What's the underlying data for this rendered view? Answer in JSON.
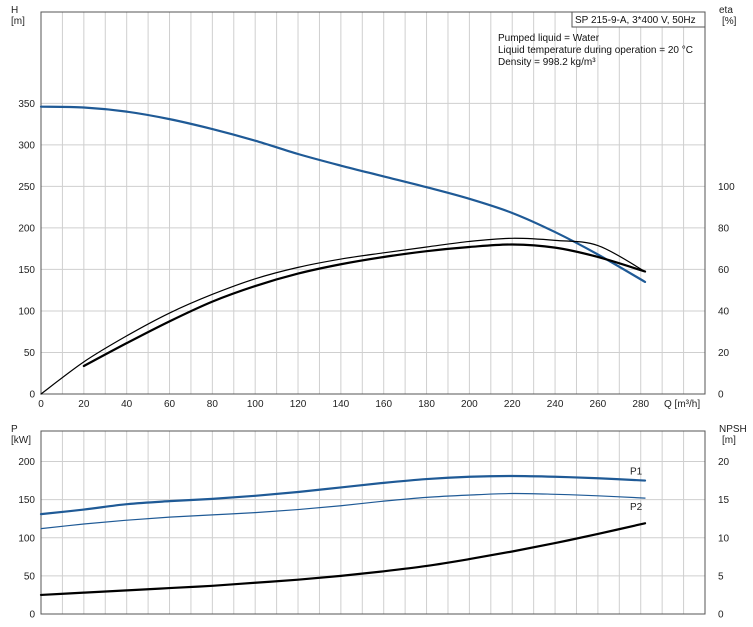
{
  "title": "SP 215-9-A, 3*400 V, 50Hz",
  "notes": [
    "Pumped liquid = Water",
    "Liquid temperature during operation = 20 °C",
    "Density = 998.2 kg/m³"
  ],
  "chart_data": [
    {
      "type": "line",
      "x_label": "Q [m³/h]",
      "x_ticks": [
        0,
        20,
        40,
        60,
        80,
        100,
        120,
        140,
        160,
        180,
        200,
        220,
        240,
        260,
        280
      ],
      "xlim": [
        0,
        310
      ],
      "y_left_label": [
        "H",
        "[m]"
      ],
      "y_left_ticks": [
        0,
        50,
        100,
        150,
        200,
        250,
        300,
        350
      ],
      "y_left_lim": [
        0,
        460
      ],
      "y_right_label": [
        "eta",
        "[%]"
      ],
      "y_right_ticks": [
        0,
        20,
        40,
        60,
        80,
        100
      ],
      "y_right_lim": [
        0,
        184
      ],
      "grid": true,
      "series": [
        {
          "axis": "left",
          "color": "#1f5a96",
          "points": [
            [
              0,
              346
            ],
            [
              20,
              345
            ],
            [
              40,
              340
            ],
            [
              60,
              331
            ],
            [
              80,
              319
            ],
            [
              100,
              305
            ],
            [
              120,
              289
            ],
            [
              140,
              275
            ],
            [
              160,
              262
            ],
            [
              180,
              249
            ],
            [
              200,
              235
            ],
            [
              220,
              218
            ],
            [
              240,
              195
            ],
            [
              260,
              168
            ],
            [
              282,
              135
            ]
          ]
        },
        {
          "axis": "right",
          "color": "#000000",
          "points": [
            [
              0,
              0
            ],
            [
              20,
              15.5
            ],
            [
              40,
              28
            ],
            [
              60,
              39
            ],
            [
              80,
              48
            ],
            [
              100,
              55.5
            ],
            [
              120,
              61
            ],
            [
              140,
              65
            ],
            [
              160,
              68
            ],
            [
              180,
              70.8
            ],
            [
              200,
              73.5
            ],
            [
              220,
              75
            ],
            [
              240,
              74
            ],
            [
              260,
              71.5
            ],
            [
              282,
              59
            ]
          ]
        },
        {
          "axis": "right",
          "color": "#000000",
          "points": [
            [
              20,
              13.5
            ],
            [
              40,
              24.5
            ],
            [
              60,
              35
            ],
            [
              80,
              44.5
            ],
            [
              100,
              52
            ],
            [
              120,
              58
            ],
            [
              140,
              62.5
            ],
            [
              160,
              66
            ],
            [
              180,
              68.8
            ],
            [
              200,
              70.8
            ],
            [
              220,
              72
            ],
            [
              240,
              70.5
            ],
            [
              260,
              66
            ],
            [
              282,
              59
            ]
          ]
        }
      ]
    },
    {
      "type": "line",
      "x_ticks": [
        0,
        20,
        40,
        60,
        80,
        100,
        120,
        140,
        160,
        180,
        200,
        220,
        240,
        260,
        280
      ],
      "xlim": [
        0,
        310
      ],
      "y_left_label": [
        "P",
        "[kW]"
      ],
      "y_left_ticks": [
        0,
        50,
        100,
        150,
        200
      ],
      "y_left_lim": [
        0,
        240
      ],
      "y_right_label": [
        "NPSH",
        "[m]"
      ],
      "y_right_ticks": [
        0,
        5,
        10,
        15,
        20
      ],
      "y_right_lim": [
        0,
        24
      ],
      "grid": true,
      "series": [
        {
          "name": "P1",
          "axis": "left",
          "color": "#1f5a96",
          "points": [
            [
              0,
              131
            ],
            [
              20,
              137
            ],
            [
              40,
              144
            ],
            [
              60,
              148
            ],
            [
              80,
              151
            ],
            [
              100,
              155
            ],
            [
              120,
              160
            ],
            [
              140,
              166
            ],
            [
              160,
              172
            ],
            [
              180,
              177
            ],
            [
              200,
              180
            ],
            [
              220,
              181
            ],
            [
              240,
              180
            ],
            [
              260,
              178
            ],
            [
              282,
              175
            ]
          ]
        },
        {
          "name": "P2",
          "axis": "left",
          "color": "#1f5a96",
          "points": [
            [
              0,
              112
            ],
            [
              20,
              118
            ],
            [
              40,
              123
            ],
            [
              60,
              127
            ],
            [
              80,
              130
            ],
            [
              100,
              133
            ],
            [
              120,
              137
            ],
            [
              140,
              142
            ],
            [
              160,
              148
            ],
            [
              180,
              153
            ],
            [
              200,
              156
            ],
            [
              220,
              158
            ],
            [
              240,
              157
            ],
            [
              260,
              155
            ],
            [
              282,
              152
            ]
          ]
        },
        {
          "axis": "right",
          "color": "#000000",
          "points": [
            [
              0,
              2.5
            ],
            [
              20,
              2.8
            ],
            [
              40,
              3.1
            ],
            [
              60,
              3.4
            ],
            [
              80,
              3.7
            ],
            [
              100,
              4.1
            ],
            [
              120,
              4.5
            ],
            [
              140,
              5.0
            ],
            [
              160,
              5.6
            ],
            [
              180,
              6.3
            ],
            [
              200,
              7.2
            ],
            [
              220,
              8.2
            ],
            [
              240,
              9.3
            ],
            [
              260,
              10.5
            ],
            [
              282,
              11.9
            ]
          ]
        }
      ]
    }
  ]
}
